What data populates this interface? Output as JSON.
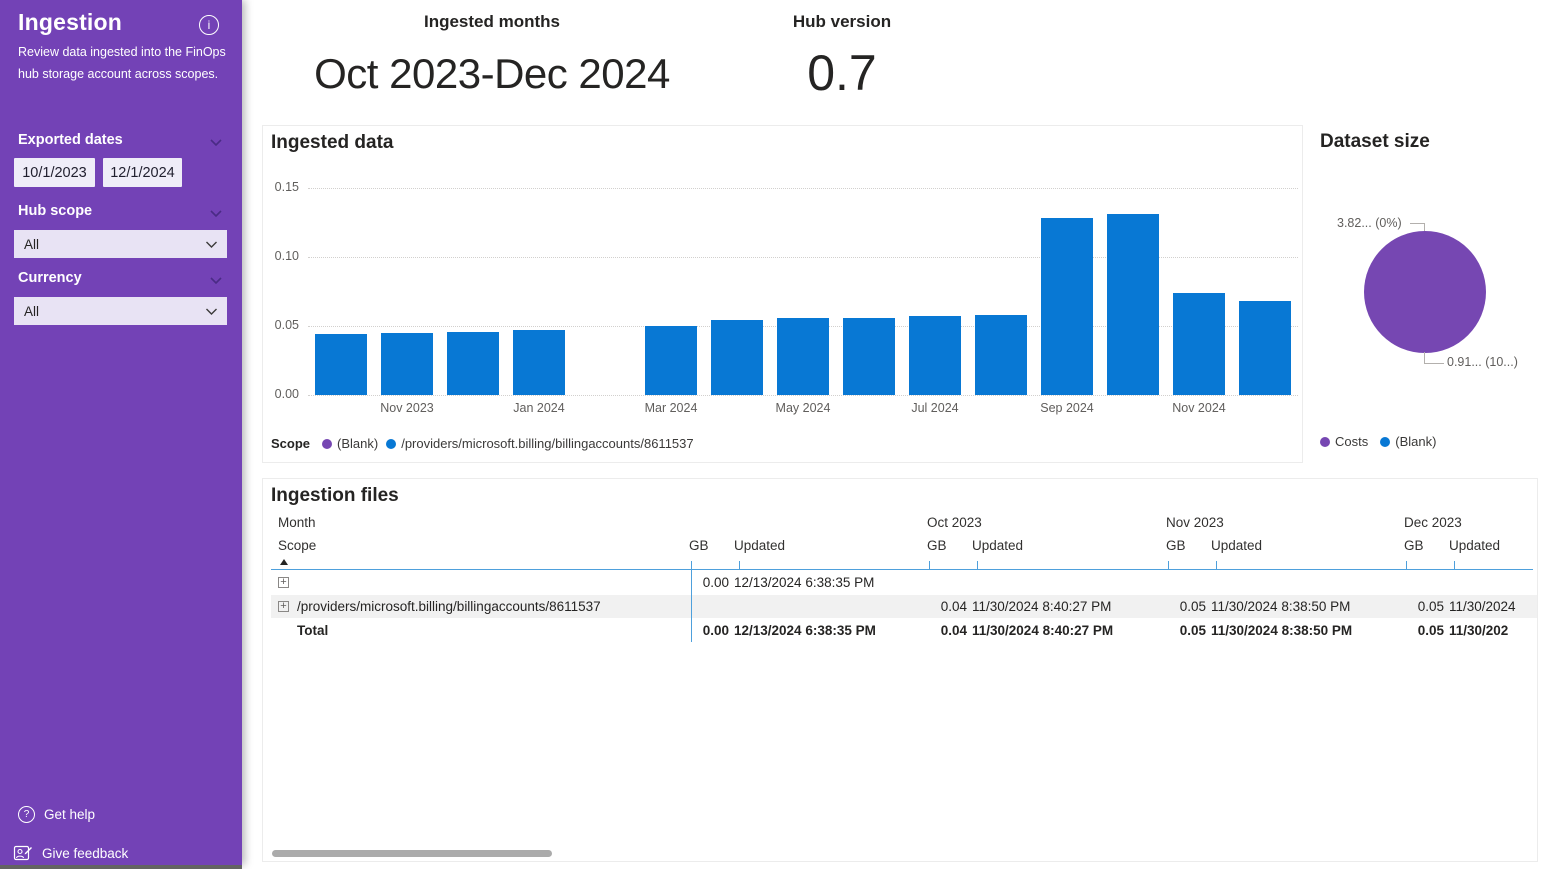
{
  "sidebar": {
    "title": "Ingestion",
    "description": "Review data ingested into the FinOps hub storage account across scopes.",
    "exported_dates": {
      "label": "Exported dates",
      "start_date": "10/1/2023",
      "end_date": "12/1/2024"
    },
    "hub_scope": {
      "label": "Hub scope",
      "value": "All"
    },
    "currency": {
      "label": "Currency",
      "value": "All"
    },
    "footer": {
      "get_help_label": "Get help",
      "give_feedback_label": "Give feedback"
    }
  },
  "kpis": {
    "ingested_months": {
      "label": "Ingested months",
      "value": "Oct 2023-Dec 2024"
    },
    "hub_version": {
      "label": "Hub version",
      "value": "0.7"
    }
  },
  "colors": {
    "sidebar_purple": "#7342B6",
    "bar_blue": "#0878D4",
    "series_purple": "#7647B2",
    "table_rule_blue": "#4EA0DC"
  },
  "chart_data": [
    {
      "type": "bar",
      "title": "Ingested data",
      "x": [
        "Oct 2023",
        "Nov 2023",
        "Dec 2023",
        "Jan 2024",
        "Feb 2024",
        "Mar 2024",
        "Apr 2024",
        "May 2024",
        "Jun 2024",
        "Jul 2024",
        "Aug 2024",
        "Sep 2024",
        "Oct 2024",
        "Nov 2024",
        "Dec 2024"
      ],
      "values": [
        0.044,
        0.045,
        0.046,
        0.047,
        0,
        0.05,
        0.054,
        0.056,
        0.056,
        0.057,
        0.058,
        0.128,
        0.131,
        0.074,
        0.068
      ],
      "visible_x_tick_labels": [
        "Nov 2023",
        "Jan 2024",
        "Mar 2024",
        "May 2024",
        "Jul 2024",
        "Sep 2024",
        "Nov 2024"
      ],
      "ylim": [
        0,
        0.15
      ],
      "yticks": [
        0,
        0.05,
        0.1,
        0.15
      ],
      "ytick_labels": [
        "0.00",
        "0.05",
        "0.10",
        "0.15"
      ],
      "grid": "horizontal dotted",
      "bar_color": "#0878D4",
      "legend": {
        "title": "Scope",
        "position": "bottom",
        "items": [
          {
            "label": "(Blank)",
            "color": "#7647B2"
          },
          {
            "label": "/providers/microsoft.billing/billingaccounts/8611537",
            "color": "#0878D4"
          }
        ]
      }
    },
    {
      "type": "pie",
      "title": "Dataset size",
      "slices": [
        {
          "name": "Costs",
          "color": "#7647B2",
          "percent": 100,
          "callout": "0.91... (10...)"
        },
        {
          "name": "(Blank)",
          "color": "#0878D4",
          "percent": 0,
          "callout": "3.82... (0%)"
        }
      ],
      "legend": {
        "position": "bottom",
        "items": [
          {
            "label": "Costs",
            "color": "#7647B2"
          },
          {
            "label": "(Blank)",
            "color": "#0878D4"
          }
        ]
      }
    }
  ],
  "ingestion_files": {
    "title": "Ingestion files",
    "row_header": {
      "level1": "Month",
      "level2": "Scope",
      "sort": "ascending"
    },
    "value_headers": {
      "gb": "GB",
      "updated": "Updated"
    },
    "month_groups": [
      "",
      "Oct 2023",
      "Nov 2023",
      "Dec 2023"
    ],
    "rows": [
      {
        "scope": "",
        "expandable": true,
        "cells": [
          {
            "gb": "0.00",
            "updated": "12/13/2024 6:38:35 PM"
          },
          {
            "gb": "",
            "updated": ""
          },
          {
            "gb": "",
            "updated": ""
          },
          {
            "gb": "",
            "updated": ""
          }
        ]
      },
      {
        "scope": "/providers/microsoft.billing/billingaccounts/8611537",
        "expandable": true,
        "cells": [
          {
            "gb": "",
            "updated": ""
          },
          {
            "gb": "0.04",
            "updated": "11/30/2024 8:40:27 PM"
          },
          {
            "gb": "0.05",
            "updated": "11/30/2024 8:38:50 PM"
          },
          {
            "gb": "0.05",
            "updated": "11/30/2024"
          }
        ]
      }
    ],
    "total": {
      "label": "Total",
      "cells": [
        {
          "gb": "0.00",
          "updated": "12/13/2024 6:38:35 PM"
        },
        {
          "gb": "0.04",
          "updated": "11/30/2024 8:40:27 PM"
        },
        {
          "gb": "0.05",
          "updated": "11/30/2024 8:38:50 PM"
        },
        {
          "gb": "0.05",
          "updated": "11/30/202"
        }
      ]
    }
  }
}
